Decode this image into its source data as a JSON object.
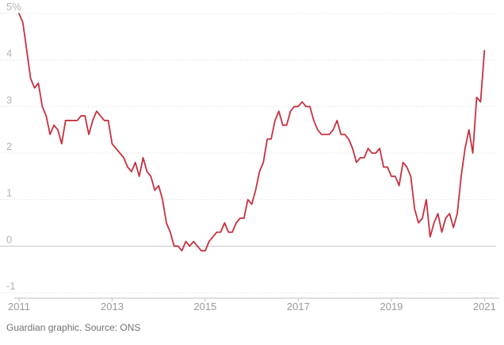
{
  "source": "Guardian graphic. Source: ONS",
  "colors": {
    "line": "#c7303f"
  },
  "chart_data": {
    "type": "line",
    "title": "",
    "xlabel": "",
    "ylabel": "",
    "y_unit": "%",
    "ylim": [
      -1,
      5
    ],
    "xlim": [
      "2011-01",
      "2021-04"
    ],
    "grid": true,
    "y_ticks": [
      {
        "value": 5,
        "label": "5%"
      },
      {
        "value": 4,
        "label": "4"
      },
      {
        "value": 3,
        "label": "3"
      },
      {
        "value": 2,
        "label": "2"
      },
      {
        "value": 1,
        "label": "1"
      },
      {
        "value": 0,
        "label": "0"
      },
      {
        "value": -1,
        "label": "-1"
      }
    ],
    "x_ticks": [
      {
        "value": "2011-01",
        "label": "2011"
      },
      {
        "value": "2013-01",
        "label": "2013"
      },
      {
        "value": "2015-01",
        "label": "2015"
      },
      {
        "value": "2017-01",
        "label": "2017"
      },
      {
        "value": "2019-01",
        "label": "2019"
      },
      {
        "value": "2021-01",
        "label": "2021"
      }
    ],
    "series": [
      {
        "start": "2011-01",
        "frequency": "monthly",
        "values": [
          5.0,
          4.8,
          4.2,
          3.6,
          3.4,
          3.5,
          3.0,
          2.8,
          2.4,
          2.6,
          2.5,
          2.2,
          2.7,
          2.7,
          2.7,
          2.7,
          2.8,
          2.8,
          2.4,
          2.7,
          2.9,
          2.8,
          2.7,
          2.7,
          2.2,
          2.1,
          2.0,
          1.9,
          1.7,
          1.6,
          1.8,
          1.5,
          1.9,
          1.6,
          1.5,
          1.2,
          1.3,
          1.0,
          0.5,
          0.3,
          0.0,
          0.0,
          -0.1,
          0.1,
          0.0,
          0.1,
          0.0,
          -0.1,
          -0.1,
          0.1,
          0.2,
          0.3,
          0.3,
          0.5,
          0.3,
          0.3,
          0.5,
          0.6,
          0.6,
          1.0,
          0.9,
          1.2,
          1.6,
          1.8,
          2.3,
          2.3,
          2.7,
          2.9,
          2.6,
          2.6,
          2.9,
          3.0,
          3.0,
          3.1,
          3.0,
          3.0,
          2.7,
          2.5,
          2.4,
          2.4,
          2.4,
          2.5,
          2.7,
          2.4,
          2.4,
          2.3,
          2.1,
          1.8,
          1.9,
          1.9,
          2.1,
          2.0,
          2.0,
          2.1,
          1.7,
          1.7,
          1.5,
          1.5,
          1.3,
          1.8,
          1.7,
          1.5,
          0.8,
          0.5,
          0.6,
          1.0,
          0.2,
          0.5,
          0.7,
          0.3,
          0.6,
          0.7,
          0.4,
          0.7,
          1.5,
          2.1,
          2.5,
          2.0,
          3.2,
          3.1,
          4.2
        ]
      }
    ]
  }
}
